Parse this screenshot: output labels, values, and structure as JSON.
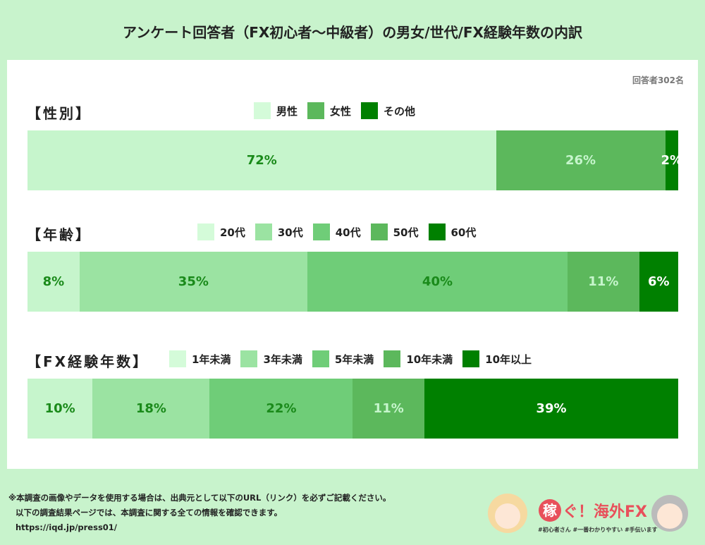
{
  "title": "アンケート回答者（FX初心者〜中級者）の男女/世代/FX経験年数の内訳",
  "respondents": "回答者302名",
  "chart_data": [
    {
      "type": "bar",
      "stacked": "horizontal-100%",
      "title": "【性別】",
      "categories": [
        "男性",
        "女性",
        "その他"
      ],
      "values": [
        72,
        26,
        2
      ],
      "colors": [
        "#c6f5cc",
        "#5cb85c",
        "#008000"
      ],
      "labels": [
        "72%",
        "26%",
        "2%"
      ],
      "label_colors": [
        "#1a8a1a",
        "#c6f5cc",
        "#ffffff"
      ]
    },
    {
      "type": "bar",
      "stacked": "horizontal-100%",
      "title": "【年齢】",
      "categories": [
        "20代",
        "30代",
        "40代",
        "50代",
        "60代"
      ],
      "values": [
        8,
        35,
        40,
        11,
        6
      ],
      "colors": [
        "#c6f5cc",
        "#9be3a2",
        "#6fcd78",
        "#5cb85c",
        "#008000"
      ],
      "labels": [
        "8%",
        "35%",
        "40%",
        "11%",
        "6%"
      ],
      "label_colors": [
        "#1a8a1a",
        "#1a8a1a",
        "#1a8a1a",
        "#c6f5cc",
        "#ffffff"
      ]
    },
    {
      "type": "bar",
      "stacked": "horizontal-100%",
      "title": "【FX経験年数】",
      "categories": [
        "1年未満",
        "3年未満",
        "5年未満",
        "10年未満",
        "10年以上"
      ],
      "values": [
        10,
        18,
        22,
        11,
        39
      ],
      "colors": [
        "#c6f5cc",
        "#9be3a2",
        "#6fcd78",
        "#5cb85c",
        "#008000"
      ],
      "labels": [
        "10%",
        "18%",
        "22%",
        "11%",
        "39%"
      ],
      "label_colors": [
        "#1a8a1a",
        "#1a8a1a",
        "#1a8a1a",
        "#c6f5cc",
        "#ffffff"
      ]
    }
  ],
  "footer": {
    "line1": "※本調査の画像やデータを使用する場合は、出典元として以下のURL（リンク）を必ずご記載ください。",
    "line2": "以下の調査結果ページでは、本調査に関する全ての情報を確認できます。",
    "url": "https://iqd.jp/press01/"
  },
  "logo": {
    "text": "稼ぐ！海外FX",
    "tagline": "#初心者さん #一番わかりやすい #手伝います"
  }
}
